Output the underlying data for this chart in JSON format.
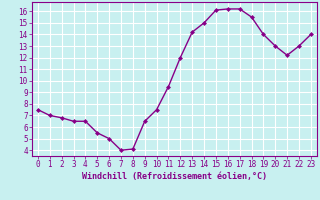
{
  "x": [
    0,
    1,
    2,
    3,
    4,
    5,
    6,
    7,
    8,
    9,
    10,
    11,
    12,
    13,
    14,
    15,
    16,
    17,
    18,
    19,
    20,
    21,
    22,
    23
  ],
  "y": [
    7.5,
    7.0,
    6.8,
    6.5,
    6.5,
    5.5,
    5.0,
    4.0,
    4.1,
    6.5,
    7.5,
    9.5,
    12.0,
    14.2,
    15.0,
    16.1,
    16.2,
    16.2,
    15.5,
    14.0,
    13.0,
    12.2,
    13.0,
    14.0
  ],
  "line_color": "#880088",
  "marker": "D",
  "marker_size": 2.0,
  "bg_color": "#c8f0f0",
  "grid_color": "#ffffff",
  "xlabel": "Windchill (Refroidissement éolien,°C)",
  "xlabel_color": "#880088",
  "tick_color": "#880088",
  "spine_color": "#880088",
  "xlim": [
    -0.5,
    23.5
  ],
  "ylim": [
    3.5,
    16.8
  ],
  "yticks": [
    4,
    5,
    6,
    7,
    8,
    9,
    10,
    11,
    12,
    13,
    14,
    15,
    16
  ],
  "xticks": [
    0,
    1,
    2,
    3,
    4,
    5,
    6,
    7,
    8,
    9,
    10,
    11,
    12,
    13,
    14,
    15,
    16,
    17,
    18,
    19,
    20,
    21,
    22,
    23
  ],
  "tick_fontsize": 5.5,
  "xlabel_fontsize": 6.0,
  "linewidth": 1.0
}
